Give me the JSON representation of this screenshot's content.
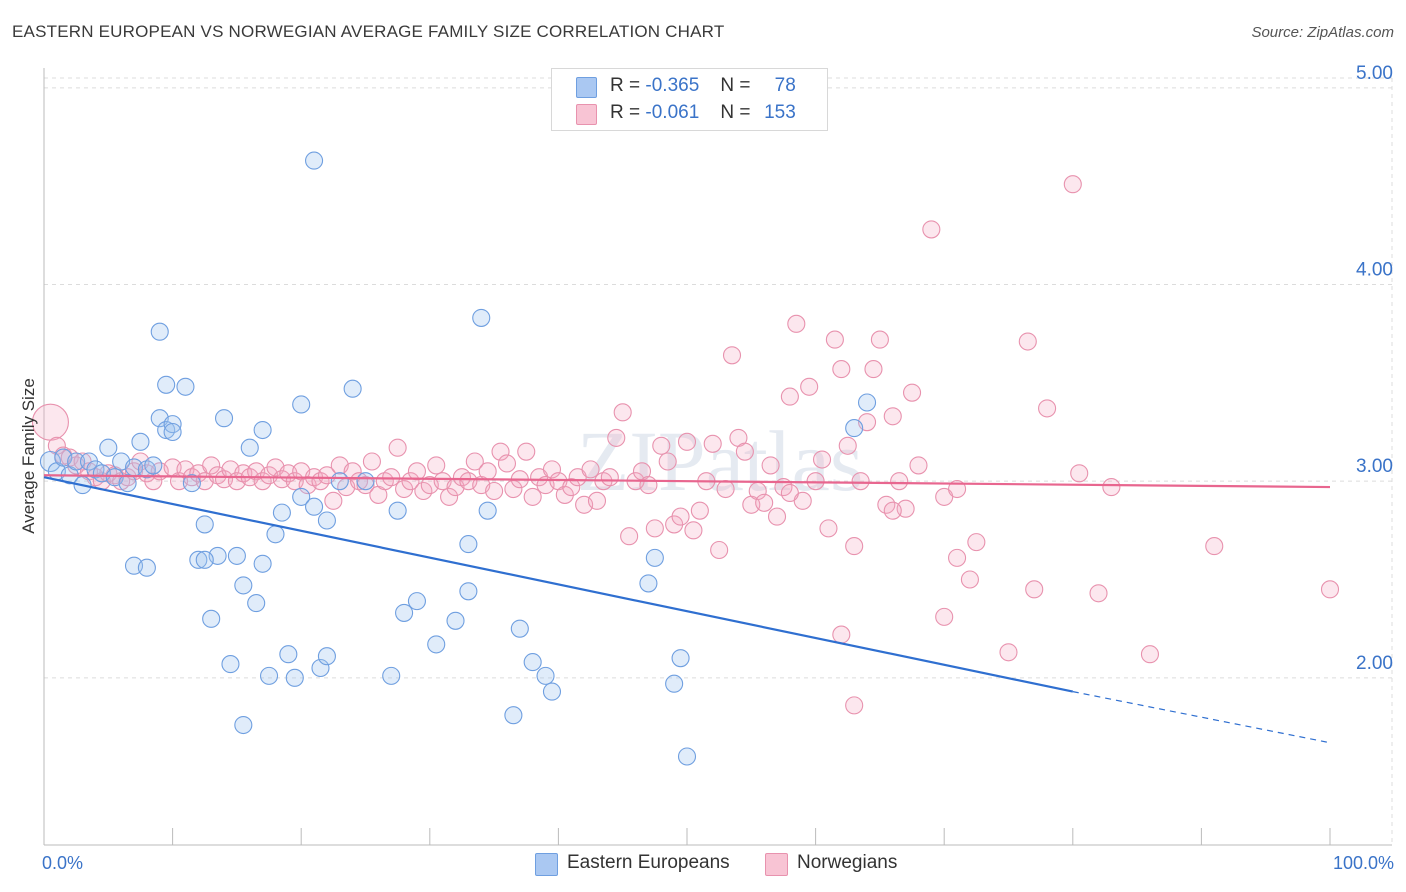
{
  "title": "EASTERN EUROPEAN VS NORWEGIAN AVERAGE FAMILY SIZE CORRELATION CHART",
  "source": "Source: ZipAtlas.com",
  "watermark": "ZIPatlas",
  "legend": {
    "r_label": "R =",
    "n_label": "N =",
    "rows": [
      {
        "r": "-0.365",
        "n": "78",
        "swatch": "#aac8f2",
        "border": "#6f9fe0"
      },
      {
        "r": "-0.061",
        "n": "153",
        "swatch": "#f8c4d4",
        "border": "#e892ae"
      }
    ]
  },
  "bottom_legend": [
    {
      "label": "Eastern Europeans",
      "swatch": "#aac8f2",
      "border": "#6f9fe0"
    },
    {
      "label": "Norwegians",
      "swatch": "#f8c4d4",
      "border": "#e892ae"
    }
  ],
  "chart_data": {
    "type": "scatter",
    "title": "EASTERN EUROPEAN VS NORWEGIAN AVERAGE FAMILY SIZE CORRELATION CHART",
    "xlabel": "",
    "ylabel": "Average Family Size",
    "x_tick_labels": [
      "0.0%",
      "100.0%"
    ],
    "y_tick_labels": [
      "2.00",
      "3.00",
      "4.00",
      "5.00"
    ],
    "xlim": [
      0,
      100
    ],
    "ylim": [
      1.15,
      5.05
    ],
    "grid": true,
    "legend_placement": "top-center",
    "colors": {
      "eastern": "#6f9fe0",
      "norwegian": "#e892ae",
      "eastern_line": "#2f6fd0",
      "norwegian_line": "#e8668f"
    },
    "series": [
      {
        "name": "Eastern Europeans",
        "r": -0.365,
        "n": 78,
        "trend": {
          "x0": 0,
          "y0": 3.02,
          "x1": 80,
          "y1": 1.93,
          "dashed_to_x": 100,
          "dashed_to_y": 1.67
        },
        "points": [
          [
            0.5,
            3.1
          ],
          [
            1.0,
            3.05
          ],
          [
            1.5,
            3.12
          ],
          [
            2.0,
            3.03
          ],
          [
            2.5,
            3.1
          ],
          [
            3.0,
            2.98
          ],
          [
            3.5,
            3.1
          ],
          [
            4.0,
            3.06
          ],
          [
            4.5,
            3.04
          ],
          [
            5.0,
            3.17
          ],
          [
            5.5,
            3.02
          ],
          [
            6.0,
            3.1
          ],
          [
            6.5,
            2.99
          ],
          [
            7.0,
            3.07
          ],
          [
            7.5,
            3.2
          ],
          [
            8.0,
            3.06
          ],
          [
            8.5,
            3.08
          ],
          [
            9.0,
            3.32
          ],
          [
            9.5,
            3.26
          ],
          [
            10.0,
            3.29
          ],
          [
            7.0,
            2.57
          ],
          [
            9.0,
            3.76
          ],
          [
            9.5,
            3.49
          ],
          [
            11.0,
            3.48
          ],
          [
            11.5,
            2.99
          ],
          [
            12.0,
            2.6
          ],
          [
            12.5,
            2.78
          ],
          [
            13.0,
            2.3
          ],
          [
            13.5,
            2.62
          ],
          [
            14.0,
            3.32
          ],
          [
            14.5,
            2.07
          ],
          [
            15.0,
            2.62
          ],
          [
            15.5,
            2.47
          ],
          [
            16.0,
            3.17
          ],
          [
            16.5,
            2.38
          ],
          [
            17.0,
            2.58
          ],
          [
            17.5,
            2.01
          ],
          [
            17.0,
            3.26
          ],
          [
            18.0,
            2.73
          ],
          [
            18.5,
            2.84
          ],
          [
            19.0,
            2.12
          ],
          [
            19.5,
            2.0
          ],
          [
            20.0,
            2.92
          ],
          [
            21.0,
            4.63
          ],
          [
            21.0,
            2.87
          ],
          [
            21.5,
            2.05
          ],
          [
            22.0,
            2.8
          ],
          [
            22.0,
            2.11
          ],
          [
            20.0,
            3.39
          ],
          [
            15.5,
            1.76
          ],
          [
            8.0,
            2.56
          ],
          [
            10.0,
            3.25
          ],
          [
            12.5,
            2.6
          ],
          [
            24.0,
            3.47
          ],
          [
            27.0,
            2.01
          ],
          [
            23.0,
            3.0
          ],
          [
            25.0,
            3.0
          ],
          [
            28.0,
            2.33
          ],
          [
            29.0,
            2.39
          ],
          [
            30.5,
            2.17
          ],
          [
            27.5,
            2.85
          ],
          [
            32.0,
            2.29
          ],
          [
            33.0,
            2.44
          ],
          [
            33.0,
            2.68
          ],
          [
            34.0,
            3.83
          ],
          [
            34.5,
            2.85
          ],
          [
            37.0,
            2.25
          ],
          [
            36.5,
            1.81
          ],
          [
            38.0,
            2.08
          ],
          [
            39.0,
            2.01
          ],
          [
            39.5,
            1.93
          ],
          [
            47.0,
            2.48
          ],
          [
            47.5,
            2.61
          ],
          [
            49.0,
            1.97
          ],
          [
            49.5,
            2.1
          ],
          [
            50.0,
            1.6
          ],
          [
            64.0,
            3.4
          ],
          [
            63.0,
            3.27
          ]
        ]
      },
      {
        "name": "Norwegians",
        "r": -0.061,
        "n": 153,
        "trend": {
          "x0": 0,
          "y0": 3.03,
          "x1": 100,
          "y1": 2.97
        },
        "points": [
          [
            0.5,
            3.3
          ],
          [
            1.0,
            3.18
          ],
          [
            1.5,
            3.13
          ],
          [
            2.0,
            3.12
          ],
          [
            2.5,
            3.08
          ],
          [
            3.0,
            3.1
          ],
          [
            3.5,
            3.05
          ],
          [
            4.0,
            3.02
          ],
          [
            4.5,
            3.0
          ],
          [
            5.0,
            3.04
          ],
          [
            5.5,
            3.03
          ],
          [
            6.0,
            3.0
          ],
          [
            6.5,
            3.02
          ],
          [
            7.0,
            3.05
          ],
          [
            7.5,
            3.1
          ],
          [
            8.0,
            3.04
          ],
          [
            8.5,
            3.0
          ],
          [
            9.0,
            3.05
          ],
          [
            10.0,
            3.07
          ],
          [
            10.5,
            3.0
          ],
          [
            11.0,
            3.06
          ],
          [
            11.5,
            3.02
          ],
          [
            12.0,
            3.04
          ],
          [
            12.5,
            3.0
          ],
          [
            13.0,
            3.08
          ],
          [
            13.5,
            3.03
          ],
          [
            14.0,
            3.01
          ],
          [
            14.5,
            3.06
          ],
          [
            15.0,
            3.0
          ],
          [
            15.5,
            3.04
          ],
          [
            16.0,
            3.02
          ],
          [
            16.5,
            3.05
          ],
          [
            17.0,
            3.0
          ],
          [
            17.5,
            3.03
          ],
          [
            18.0,
            3.07
          ],
          [
            18.5,
            3.01
          ],
          [
            19.0,
            3.04
          ],
          [
            19.5,
            3.0
          ],
          [
            20.0,
            3.05
          ],
          [
            20.5,
            2.98
          ],
          [
            21.0,
            3.02
          ],
          [
            21.5,
            3.0
          ],
          [
            22.0,
            3.03
          ],
          [
            22.5,
            2.9
          ],
          [
            23.0,
            3.08
          ],
          [
            23.5,
            2.97
          ],
          [
            24.0,
            3.05
          ],
          [
            24.5,
            3.0
          ],
          [
            25.0,
            2.98
          ],
          [
            25.5,
            3.1
          ],
          [
            26.0,
            2.93
          ],
          [
            26.5,
            3.0
          ],
          [
            27.0,
            3.02
          ],
          [
            27.5,
            3.17
          ],
          [
            28.0,
            2.96
          ],
          [
            28.5,
            3.0
          ],
          [
            29.0,
            3.05
          ],
          [
            29.5,
            2.95
          ],
          [
            30.0,
            2.98
          ],
          [
            30.5,
            3.08
          ],
          [
            31.0,
            3.0
          ],
          [
            31.5,
            2.92
          ],
          [
            32.0,
            2.97
          ],
          [
            32.5,
            3.02
          ],
          [
            33.0,
            3.0
          ],
          [
            33.5,
            3.1
          ],
          [
            34.0,
            2.98
          ],
          [
            34.5,
            3.05
          ],
          [
            35.0,
            2.95
          ],
          [
            35.5,
            3.15
          ],
          [
            36.0,
            3.09
          ],
          [
            36.5,
            2.96
          ],
          [
            37.0,
            3.01
          ],
          [
            37.5,
            3.15
          ],
          [
            38.0,
            2.92
          ],
          [
            38.5,
            3.02
          ],
          [
            39.0,
            2.98
          ],
          [
            39.5,
            3.06
          ],
          [
            40.0,
            3.0
          ],
          [
            40.5,
            2.93
          ],
          [
            41.0,
            2.97
          ],
          [
            41.5,
            3.02
          ],
          [
            42.0,
            2.88
          ],
          [
            42.5,
            3.06
          ],
          [
            43.0,
            2.9
          ],
          [
            43.5,
            3.0
          ],
          [
            44.0,
            3.02
          ],
          [
            44.5,
            3.22
          ],
          [
            45.0,
            3.35
          ],
          [
            45.5,
            2.72
          ],
          [
            46.0,
            3.0
          ],
          [
            46.5,
            3.05
          ],
          [
            47.0,
            2.98
          ],
          [
            47.5,
            2.76
          ],
          [
            48.0,
            3.18
          ],
          [
            48.5,
            3.1
          ],
          [
            49.0,
            2.78
          ],
          [
            49.5,
            2.82
          ],
          [
            50.0,
            3.2
          ],
          [
            50.5,
            2.75
          ],
          [
            51.0,
            2.85
          ],
          [
            51.5,
            3.0
          ],
          [
            52.0,
            3.19
          ],
          [
            52.5,
            2.65
          ],
          [
            53.0,
            2.96
          ],
          [
            53.5,
            3.64
          ],
          [
            54.0,
            3.22
          ],
          [
            54.5,
            3.15
          ],
          [
            55.0,
            2.88
          ],
          [
            55.5,
            2.95
          ],
          [
            56.0,
            2.89
          ],
          [
            56.5,
            3.08
          ],
          [
            57.0,
            2.82
          ],
          [
            57.5,
            2.97
          ],
          [
            58.0,
            3.43
          ],
          [
            58.5,
            3.8
          ],
          [
            59.0,
            2.9
          ],
          [
            59.5,
            3.48
          ],
          [
            60.0,
            3.0
          ],
          [
            60.5,
            3.11
          ],
          [
            61.0,
            2.76
          ],
          [
            61.5,
            3.72
          ],
          [
            62.0,
            3.57
          ],
          [
            62.5,
            3.18
          ],
          [
            63.0,
            2.67
          ],
          [
            63.5,
            3.0
          ],
          [
            64.0,
            3.3
          ],
          [
            64.5,
            3.57
          ],
          [
            65.0,
            3.72
          ],
          [
            65.5,
            2.88
          ],
          [
            66.0,
            3.33
          ],
          [
            66.5,
            3.0
          ],
          [
            67.0,
            2.86
          ],
          [
            67.5,
            3.45
          ],
          [
            68.0,
            3.08
          ],
          [
            69.0,
            4.28
          ],
          [
            70.0,
            2.92
          ],
          [
            71.0,
            2.61
          ],
          [
            72.0,
            2.5
          ],
          [
            72.5,
            2.69
          ],
          [
            70.0,
            2.31
          ],
          [
            75.0,
            2.13
          ],
          [
            76.5,
            3.71
          ],
          [
            77.0,
            2.45
          ],
          [
            78.0,
            3.37
          ],
          [
            80.0,
            4.51
          ],
          [
            80.5,
            3.04
          ],
          [
            82.0,
            2.43
          ],
          [
            83.0,
            2.97
          ],
          [
            86.0,
            2.12
          ],
          [
            91.0,
            2.67
          ],
          [
            100.0,
            2.45
          ],
          [
            63.0,
            1.86
          ],
          [
            62.0,
            2.22
          ],
          [
            66.0,
            2.85
          ],
          [
            71.0,
            2.96
          ],
          [
            58.0,
            2.94
          ]
        ]
      }
    ]
  }
}
